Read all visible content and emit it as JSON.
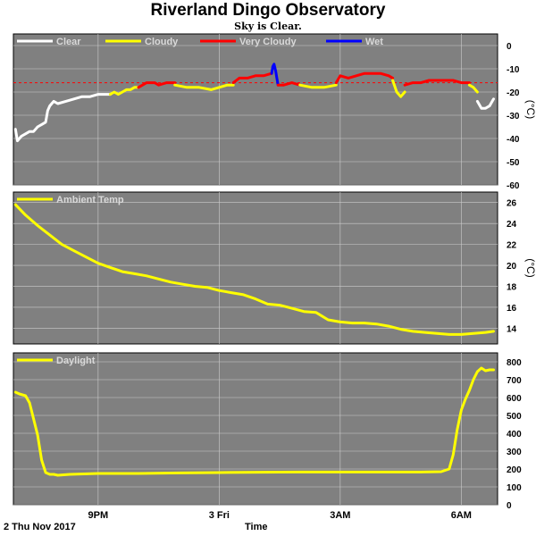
{
  "title": "Riverland Dingo Observatory",
  "subtitle": "Sky is Clear.",
  "footer": {
    "date": "2 Thu Nov 2017",
    "xlabel": "Time"
  },
  "colors": {
    "panel_bg": "#808080",
    "grid": "#cccccc",
    "series_yellow": "#ffff00",
    "threshold_red": "#ff0000"
  },
  "chart_data": [
    {
      "type": "line",
      "name": "sky-temperature",
      "ylabel": "(°C)",
      "ylim": [
        -60,
        5
      ],
      "yticks": [
        0,
        -10,
        -20,
        -30,
        -40,
        -50,
        -60
      ],
      "threshold": -16,
      "xticks": [
        "9PM",
        "3 Fri",
        "3AM",
        "6AM"
      ],
      "xtick_hours": [
        21,
        24,
        27,
        30
      ],
      "xlim_hours": [
        18.9,
        30.9
      ],
      "legend": [
        {
          "label": "Clear",
          "color": "#ffffff"
        },
        {
          "label": "Cloudy",
          "color": "#ffff00"
        },
        {
          "label": "Very Cloudy",
          "color": "#ff0000"
        },
        {
          "label": "Wet",
          "color": "#0000ff"
        }
      ],
      "series": [
        {
          "label": "Clear",
          "color": "#ffffff",
          "x": [
            18.95,
            19.0,
            19.05,
            19.1,
            19.2,
            19.3,
            19.4,
            19.5,
            19.6,
            19.7,
            19.75,
            19.8,
            19.85,
            19.9,
            20.0,
            20.2,
            20.4,
            20.6,
            20.8,
            21.0,
            21.2,
            21.3
          ],
          "y": [
            -36,
            -41,
            -40,
            -39,
            -38,
            -37,
            -37,
            -35,
            -34,
            -33,
            -28,
            -26,
            -25,
            -24,
            -25,
            -24,
            -23,
            -22,
            -22,
            -21,
            -21,
            -21
          ]
        },
        {
          "label": "Cloudy",
          "color": "#ffff00",
          "x": [
            21.3,
            21.4,
            21.5,
            21.6,
            21.7,
            21.8,
            21.9,
            22.0
          ],
          "y": [
            -21,
            -20,
            -21,
            -20,
            -19,
            -19,
            -18,
            -18
          ]
        },
        {
          "label": "Very Cloudy",
          "color": "#ff0000",
          "x": [
            22.0,
            22.2,
            22.4,
            22.5,
            22.7,
            22.9
          ],
          "y": [
            -18,
            -16,
            -16,
            -17,
            -16,
            -16
          ]
        },
        {
          "label": "Cloudy",
          "color": "#ffff00",
          "x": [
            22.9,
            23.2,
            23.5,
            23.8,
            24.0,
            24.2,
            24.35
          ],
          "y": [
            -17,
            -18,
            -18,
            -19,
            -18,
            -17,
            -17
          ]
        },
        {
          "label": "Very Cloudy",
          "color": "#ff0000",
          "x": [
            24.35,
            24.5,
            24.7,
            24.9,
            25.1,
            25.3
          ],
          "y": [
            -16,
            -14,
            -14,
            -13,
            -13,
            -12
          ]
        },
        {
          "label": "Wet",
          "color": "#0000ff",
          "x": [
            25.3,
            25.33,
            25.36,
            25.4,
            25.43,
            25.46
          ],
          "y": [
            -12,
            -9,
            -8,
            -11,
            -14,
            -17
          ]
        },
        {
          "label": "Very Cloudy",
          "color": "#ff0000",
          "x": [
            25.46,
            25.6,
            25.8,
            26.0
          ],
          "y": [
            -17,
            -17,
            -16,
            -17
          ]
        },
        {
          "label": "Cloudy",
          "color": "#ffff00",
          "x": [
            26.0,
            26.3,
            26.6,
            26.9
          ],
          "y": [
            -17,
            -18,
            -18,
            -17
          ]
        },
        {
          "label": "Very Cloudy",
          "color": "#ff0000",
          "x": [
            26.9,
            27.0,
            27.2,
            27.4,
            27.6,
            27.8,
            28.0,
            28.2,
            28.3
          ],
          "y": [
            -16,
            -13,
            -14,
            -13,
            -12,
            -12,
            -12,
            -13,
            -14
          ]
        },
        {
          "label": "Cloudy",
          "color": "#ffff00",
          "x": [
            28.3,
            28.4,
            28.5,
            28.6
          ],
          "y": [
            -15,
            -20,
            -22,
            -20
          ]
        },
        {
          "label": "Very Cloudy",
          "color": "#ff0000",
          "x": [
            28.6,
            28.8,
            29.0,
            29.2,
            29.4,
            29.6,
            29.8,
            30.0,
            30.2
          ],
          "y": [
            -17,
            -16,
            -16,
            -15,
            -15,
            -15,
            -15,
            -16,
            -16
          ]
        },
        {
          "label": "Cloudy",
          "color": "#ffff00",
          "x": [
            30.2,
            30.3,
            30.4
          ],
          "y": [
            -17,
            -18,
            -20
          ]
        },
        {
          "label": "Clear",
          "color": "#ffffff",
          "x": [
            30.4,
            30.5,
            30.6,
            30.7,
            30.8
          ],
          "y": [
            -24,
            -27,
            -27,
            -26,
            -23
          ]
        }
      ]
    },
    {
      "type": "line",
      "name": "ambient-temperature",
      "ylabel": "(°C)",
      "ylim": [
        12.5,
        27
      ],
      "yticks": [
        26,
        24,
        22,
        20,
        18,
        16,
        14
      ],
      "xticks": [
        "9PM",
        "3 Fri",
        "3AM",
        "6AM"
      ],
      "xtick_hours": [
        21,
        24,
        27,
        30
      ],
      "xlim_hours": [
        18.9,
        30.9
      ],
      "legend": [
        {
          "label": "Ambient Temp",
          "color": "#ffff00"
        }
      ],
      "series": [
        {
          "label": "Ambient Temp",
          "color": "#ffff00",
          "x": [
            18.95,
            19.2,
            19.5,
            19.8,
            20.1,
            20.4,
            20.7,
            21.0,
            21.3,
            21.6,
            21.9,
            22.2,
            22.5,
            22.8,
            23.1,
            23.4,
            23.7,
            24.0,
            24.3,
            24.6,
            24.9,
            25.2,
            25.5,
            25.8,
            26.1,
            26.4,
            26.7,
            27.0,
            27.3,
            27.6,
            27.9,
            28.2,
            28.5,
            28.8,
            29.1,
            29.4,
            29.7,
            30.0,
            30.3,
            30.6,
            30.8
          ],
          "y": [
            25.8,
            24.8,
            23.8,
            22.9,
            22.0,
            21.4,
            20.8,
            20.2,
            19.8,
            19.4,
            19.2,
            19.0,
            18.7,
            18.4,
            18.2,
            18.0,
            17.9,
            17.6,
            17.4,
            17.2,
            16.8,
            16.3,
            16.2,
            15.9,
            15.6,
            15.5,
            14.8,
            14.6,
            14.5,
            14.5,
            14.4,
            14.2,
            13.9,
            13.7,
            13.6,
            13.5,
            13.4,
            13.4,
            13.5,
            13.6,
            13.7
          ]
        }
      ]
    },
    {
      "type": "line",
      "name": "daylight",
      "ylabel": "",
      "ylim": [
        0,
        850
      ],
      "yticks": [
        800,
        700,
        600,
        500,
        400,
        300,
        200,
        100,
        0
      ],
      "xticks": [
        "9PM",
        "3 Fri",
        "3AM",
        "6AM"
      ],
      "xtick_hours": [
        21,
        24,
        27,
        30
      ],
      "xlim_hours": [
        18.9,
        30.9
      ],
      "legend": [
        {
          "label": "Daylight",
          "color": "#ffff00"
        }
      ],
      "series": [
        {
          "label": "Daylight",
          "color": "#ffff00",
          "x": [
            18.95,
            19.05,
            19.2,
            19.3,
            19.4,
            19.5,
            19.6,
            19.7,
            19.8,
            19.9,
            20.0,
            20.3,
            21.0,
            22.0,
            23.0,
            24.0,
            25.0,
            26.0,
            27.0,
            28.0,
            29.0,
            29.5,
            29.7,
            29.8,
            29.9,
            30.0,
            30.1,
            30.2,
            30.3,
            30.4,
            30.5,
            30.6,
            30.7,
            30.8
          ],
          "y": [
            630,
            620,
            610,
            570,
            480,
            390,
            250,
            180,
            170,
            170,
            165,
            170,
            175,
            175,
            178,
            180,
            182,
            183,
            183,
            183,
            183,
            185,
            200,
            280,
            420,
            530,
            590,
            640,
            700,
            745,
            765,
            750,
            755,
            755
          ]
        }
      ]
    }
  ]
}
